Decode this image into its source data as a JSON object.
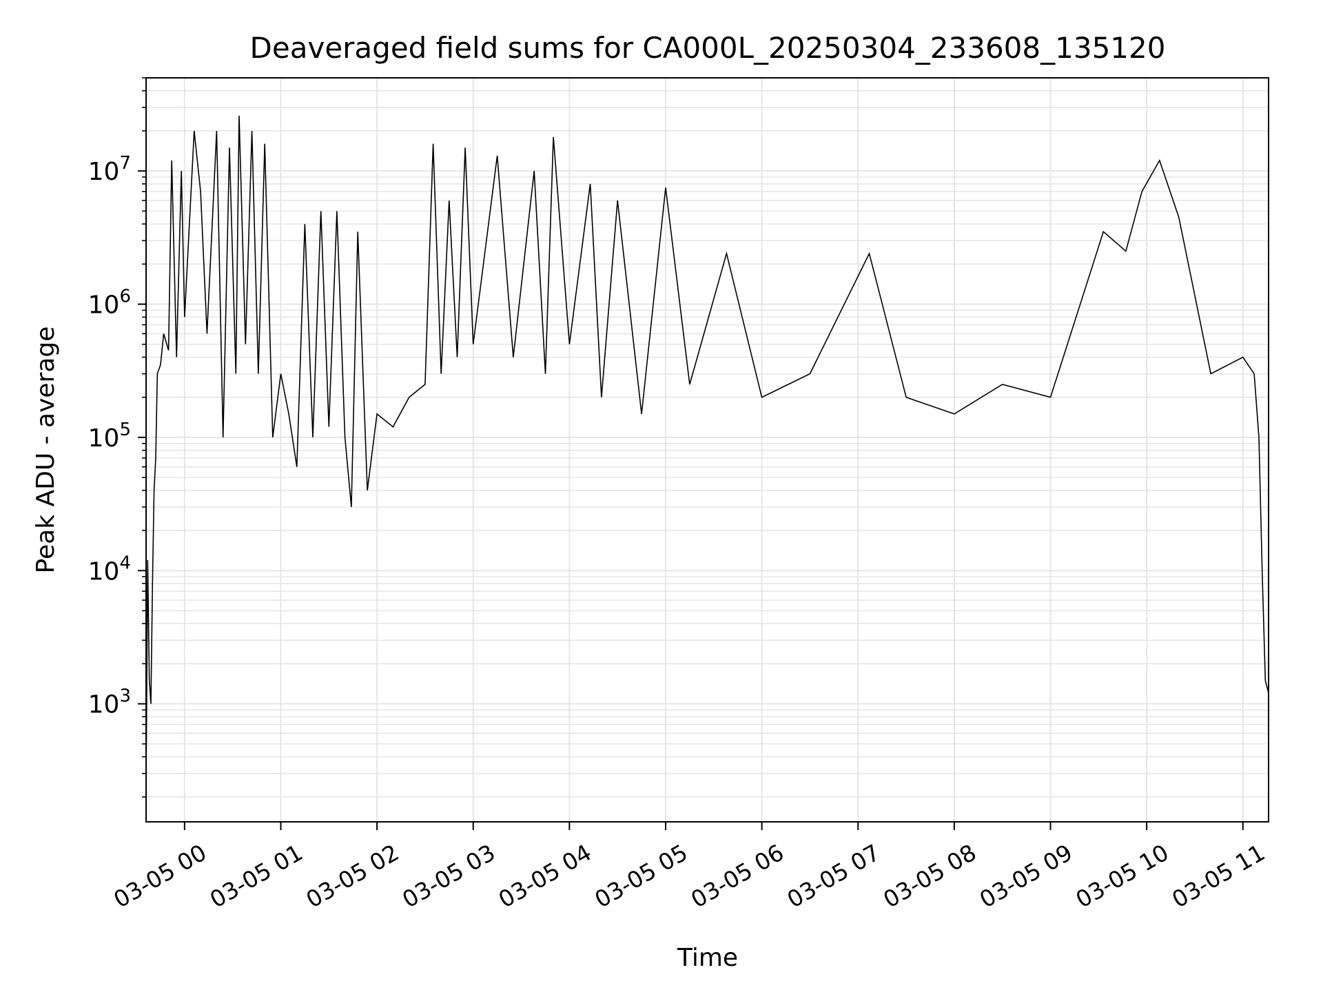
{
  "chart_data": {
    "type": "line",
    "title": "Deaveraged field sums for CA000L_20250304_233608_135120",
    "xlabel": "Time",
    "ylabel": "Peak ADU - average",
    "yscale": "log",
    "ylim": [
      130,
      50000000
    ],
    "xlim": [
      "2025-03-04 23:36",
      "2025-03-05 11:16"
    ],
    "grid": true,
    "line_color": "#000000",
    "grid_color": "#e6e6e6",
    "x_ticks": [
      {
        "t": "2025-03-05 00:00",
        "label": "03-05 00"
      },
      {
        "t": "2025-03-05 01:00",
        "label": "03-05 01"
      },
      {
        "t": "2025-03-05 02:00",
        "label": "03-05 02"
      },
      {
        "t": "2025-03-05 03:00",
        "label": "03-05 03"
      },
      {
        "t": "2025-03-05 04:00",
        "label": "03-05 04"
      },
      {
        "t": "2025-03-05 05:00",
        "label": "03-05 05"
      },
      {
        "t": "2025-03-05 06:00",
        "label": "03-05 06"
      },
      {
        "t": "2025-03-05 07:00",
        "label": "03-05 07"
      },
      {
        "t": "2025-03-05 08:00",
        "label": "03-05 08"
      },
      {
        "t": "2025-03-05 09:00",
        "label": "03-05 09"
      },
      {
        "t": "2025-03-05 10:00",
        "label": "03-05 10"
      },
      {
        "t": "2025-03-05 11:00",
        "label": "03-05 11"
      }
    ],
    "y_ticks": [
      {
        "value": 1000,
        "base": "10",
        "exp": "3"
      },
      {
        "value": 10000,
        "base": "10",
        "exp": "4"
      },
      {
        "value": 100000,
        "base": "10",
        "exp": "5"
      },
      {
        "value": 1000000,
        "base": "10",
        "exp": "6"
      },
      {
        "value": 10000000,
        "base": "10",
        "exp": "7"
      }
    ],
    "series": [
      {
        "points": [
          [
            "2025-03-04 23:36",
            250
          ],
          [
            "2025-03-04 23:37",
            12000
          ],
          [
            "2025-03-04 23:38",
            1500
          ],
          [
            "2025-03-04 23:39",
            1000
          ],
          [
            "2025-03-04 23:40",
            8000
          ],
          [
            "2025-03-04 23:41",
            40000
          ],
          [
            "2025-03-04 23:42",
            70000
          ],
          [
            "2025-03-04 23:43",
            300000
          ],
          [
            "2025-03-04 23:45",
            350000
          ],
          [
            "2025-03-04 23:47",
            600000
          ],
          [
            "2025-03-04 23:50",
            450000
          ],
          [
            "2025-03-04 23:52",
            12000000
          ],
          [
            "2025-03-04 23:55",
            400000
          ],
          [
            "2025-03-04 23:58",
            10000000
          ],
          [
            "2025-03-05 00:00",
            800000
          ],
          [
            "2025-03-05 00:06",
            20000000
          ],
          [
            "2025-03-05 00:10",
            7000000
          ],
          [
            "2025-03-05 00:14",
            600000
          ],
          [
            "2025-03-05 00:20",
            20000000
          ],
          [
            "2025-03-05 00:24",
            100000
          ],
          [
            "2025-03-05 00:28",
            15000000
          ],
          [
            "2025-03-05 00:32",
            300000
          ],
          [
            "2025-03-05 00:34",
            26000000
          ],
          [
            "2025-03-05 00:38",
            500000
          ],
          [
            "2025-03-05 00:42",
            20000000
          ],
          [
            "2025-03-05 00:46",
            300000
          ],
          [
            "2025-03-05 00:50",
            16000000
          ],
          [
            "2025-03-05 00:55",
            100000
          ],
          [
            "2025-03-05 01:00",
            300000
          ],
          [
            "2025-03-05 01:05",
            150000
          ],
          [
            "2025-03-05 01:10",
            60000
          ],
          [
            "2025-03-05 01:15",
            4000000
          ],
          [
            "2025-03-05 01:20",
            100000
          ],
          [
            "2025-03-05 01:25",
            5000000
          ],
          [
            "2025-03-05 01:30",
            120000
          ],
          [
            "2025-03-05 01:35",
            5000000
          ],
          [
            "2025-03-05 01:40",
            100000
          ],
          [
            "2025-03-05 01:44",
            30000
          ],
          [
            "2025-03-05 01:48",
            3500000
          ],
          [
            "2025-03-05 01:54",
            40000
          ],
          [
            "2025-03-05 02:00",
            150000
          ],
          [
            "2025-03-05 02:10",
            120000
          ],
          [
            "2025-03-05 02:20",
            200000
          ],
          [
            "2025-03-05 02:30",
            250000
          ],
          [
            "2025-03-05 02:35",
            16000000
          ],
          [
            "2025-03-05 02:40",
            300000
          ],
          [
            "2025-03-05 02:45",
            6000000
          ],
          [
            "2025-03-05 02:50",
            400000
          ],
          [
            "2025-03-05 02:55",
            15000000
          ],
          [
            "2025-03-05 03:00",
            500000
          ],
          [
            "2025-03-05 03:15",
            13000000
          ],
          [
            "2025-03-05 03:25",
            400000
          ],
          [
            "2025-03-05 03:38",
            10000000
          ],
          [
            "2025-03-05 03:45",
            300000
          ],
          [
            "2025-03-05 03:50",
            18000000
          ],
          [
            "2025-03-05 04:00",
            500000
          ],
          [
            "2025-03-05 04:13",
            8000000
          ],
          [
            "2025-03-05 04:20",
            200000
          ],
          [
            "2025-03-05 04:30",
            6000000
          ],
          [
            "2025-03-05 04:45",
            150000
          ],
          [
            "2025-03-05 05:00",
            7500000
          ],
          [
            "2025-03-05 05:15",
            250000
          ],
          [
            "2025-03-05 05:38",
            2400000
          ],
          [
            "2025-03-05 06:00",
            200000
          ],
          [
            "2025-03-05 06:30",
            300000
          ],
          [
            "2025-03-05 07:07",
            2400000
          ],
          [
            "2025-03-05 07:30",
            200000
          ],
          [
            "2025-03-05 08:00",
            150000
          ],
          [
            "2025-03-05 08:30",
            250000
          ],
          [
            "2025-03-05 09:00",
            200000
          ],
          [
            "2025-03-05 09:33",
            3500000
          ],
          [
            "2025-03-05 09:47",
            2500000
          ],
          [
            "2025-03-05 09:57",
            7000000
          ],
          [
            "2025-03-05 10:08",
            12000000
          ],
          [
            "2025-03-05 10:20",
            4500000
          ],
          [
            "2025-03-05 10:40",
            300000
          ],
          [
            "2025-03-05 11:00",
            400000
          ],
          [
            "2025-03-05 11:07",
            300000
          ],
          [
            "2025-03-05 11:10",
            100000
          ],
          [
            "2025-03-05 11:12",
            10000
          ],
          [
            "2025-03-05 11:14",
            1500
          ],
          [
            "2025-03-05 11:16",
            1200
          ]
        ]
      }
    ]
  }
}
